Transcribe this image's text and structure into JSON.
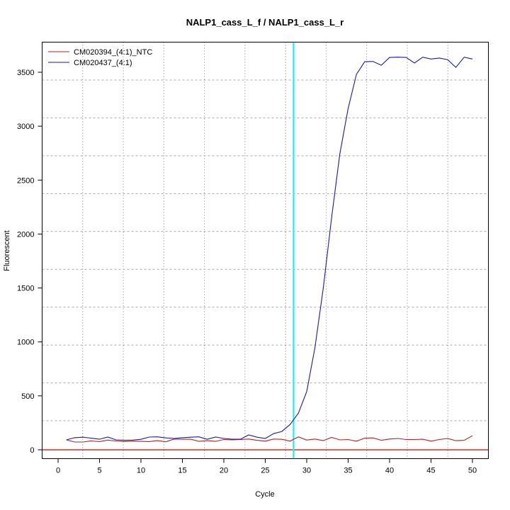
{
  "chart_data": {
    "type": "line",
    "title": "NALP1_cass_L_f / NALP1_cass_L_r",
    "xlabel": "Cycle",
    "ylabel": "Fluorescent",
    "xlim": [
      -2,
      52
    ],
    "ylim": [
      -80,
      3780
    ],
    "xticks": [
      0,
      5,
      10,
      15,
      20,
      25,
      30,
      35,
      40,
      45,
      50
    ],
    "yticks": [
      0,
      500,
      1000,
      1500,
      2000,
      2500,
      3000,
      3500
    ],
    "grid": true,
    "legend_position": "top-left",
    "threshold_cycle": 28.4,
    "baseline": 0,
    "colors": {
      "threshold": "#00ffff",
      "baseline": "#cc0000"
    },
    "x": [
      1,
      2,
      3,
      4,
      5,
      6,
      7,
      8,
      9,
      10,
      11,
      12,
      13,
      14,
      15,
      16,
      17,
      18,
      19,
      20,
      21,
      22,
      23,
      24,
      25,
      26,
      27,
      28,
      29,
      30,
      31,
      32,
      33,
      34,
      35,
      36,
      37,
      38,
      39,
      40,
      41,
      42,
      43,
      44,
      45,
      46,
      47,
      48,
      49,
      50
    ],
    "series": [
      {
        "name": "CM020394_(4:1)_NTC",
        "color": "#b22222",
        "values": [
          92,
          72,
          72,
          82,
          76,
          90,
          82,
          76,
          80,
          78,
          76,
          85,
          74,
          100,
          98,
          98,
          78,
          85,
          78,
          95,
          92,
          95,
          100,
          88,
          80,
          100,
          97,
          80,
          120,
          90,
          100,
          85,
          115,
          92,
          95,
          80,
          108,
          110,
          88,
          100,
          105,
          95,
          95,
          98,
          80,
          95,
          105,
          85,
          88,
          130
        ]
      },
      {
        "name": "CM020437_(4:1)",
        "color": "#1a1aa6",
        "values": [
          92,
          112,
          117,
          108,
          98,
          118,
          92,
          88,
          90,
          97,
          118,
          120,
          110,
          105,
          112,
          117,
          120,
          97,
          118,
          105,
          98,
          98,
          138,
          117,
          105,
          150,
          170,
          235,
          340,
          540,
          950,
          1500,
          2150,
          2745,
          3165,
          3480,
          3598,
          3600,
          3565,
          3637,
          3640,
          3637,
          3585,
          3640,
          3623,
          3632,
          3617,
          3545,
          3640,
          3623
        ]
      }
    ]
  }
}
